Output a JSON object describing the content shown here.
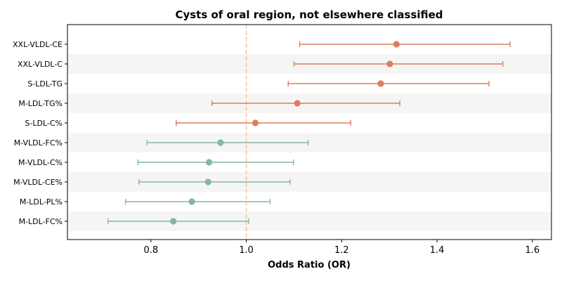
{
  "chart_data": {
    "type": "forest",
    "title": "Cysts of oral region, not elsewhere classified",
    "xlabel": "Odds Ratio (OR)",
    "xlim": [
      0.625,
      1.64
    ],
    "xticks": [
      0.8,
      1.0,
      1.2,
      1.4,
      1.6
    ],
    "xtick_labels": [
      "0.8",
      "1.0",
      "1.2",
      "1.4",
      "1.6"
    ],
    "reference_line": 1.0,
    "grid": false,
    "row_banding": true,
    "colors": {
      "positive": "#e07b5f",
      "negative": "#84b89e",
      "reference": "#f5c98a",
      "band": "#f5f5f5"
    },
    "rows": [
      {
        "label": "XXL-VLDL-CE",
        "or": 1.315,
        "lower": 1.112,
        "upper": 1.553,
        "group": "positive"
      },
      {
        "label": "XXL-VLDL-C",
        "or": 1.301,
        "lower": 1.1,
        "upper": 1.538,
        "group": "positive"
      },
      {
        "label": "S-LDL-TG",
        "or": 1.282,
        "lower": 1.088,
        "upper": 1.509,
        "group": "positive"
      },
      {
        "label": "M-LDL-TG%",
        "or": 1.107,
        "lower": 0.928,
        "upper": 1.322,
        "group": "positive"
      },
      {
        "label": "S-LDL-C%",
        "or": 1.019,
        "lower": 0.853,
        "upper": 1.219,
        "group": "positive"
      },
      {
        "label": "M-VLDL-FC%",
        "or": 0.946,
        "lower": 0.792,
        "upper": 1.13,
        "group": "negative"
      },
      {
        "label": "M-VLDL-C%",
        "or": 0.922,
        "lower": 0.773,
        "upper": 1.099,
        "group": "negative"
      },
      {
        "label": "M-VLDL-CE%",
        "or": 0.92,
        "lower": 0.775,
        "upper": 1.092,
        "group": "negative"
      },
      {
        "label": "M-LDL-PL%",
        "or": 0.886,
        "lower": 0.747,
        "upper": 1.05,
        "group": "negative"
      },
      {
        "label": "M-LDL-FC%",
        "or": 0.847,
        "lower": 0.71,
        "upper": 1.005,
        "group": "negative"
      }
    ]
  }
}
